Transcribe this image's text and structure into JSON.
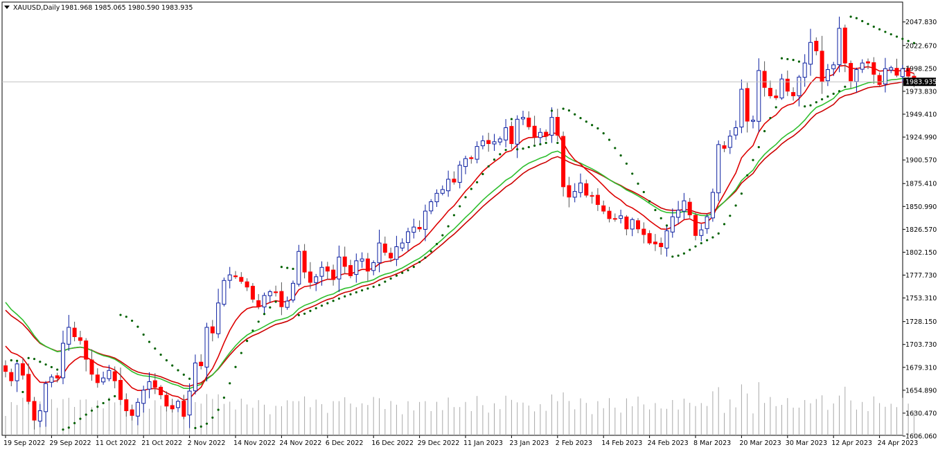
{
  "header": {
    "symbol": "XAUUSD,Daily",
    "ohlc": "1981.968 1985.065 1980.590 1983.935"
  },
  "colors": {
    "bull": "#0a1ea0",
    "bear": "#ff0000",
    "ma_fast": "#dd0000",
    "ma_mid": "#2fbf2f",
    "ma_slow": "#cc0000",
    "sar": "#006000",
    "volume": "#a8a8a8"
  },
  "chart_data": {
    "type": "candlestick",
    "title": "XAUUSD,Daily",
    "ylim": [
      1606.06,
      2055.0
    ],
    "y_ticks": [
      2047.83,
      2022.67,
      1998.25,
      1973.83,
      1949.41,
      1924.99,
      1900.57,
      1875.41,
      1850.99,
      1826.57,
      1802.15,
      1777.73,
      1753.31,
      1728.15,
      1703.73,
      1679.31,
      1654.89,
      1630.47,
      1606.06
    ],
    "y_tick_labels": [
      "2047.830",
      "2022.670",
      "1998.250",
      "1973.830",
      "1949.410",
      "1924.990",
      "1900.570",
      "1875.410",
      "1850.990",
      "1826.570",
      "1802.150",
      "1777.730",
      "1753.310",
      "1728.150",
      "1703.730",
      "1679.310",
      "1654.890",
      "1630.470",
      "1606.060"
    ],
    "current_price_label": "1983.935",
    "current_price": 1983.935,
    "x_labels": [
      "19 Sep 2022",
      "29 Sep 2022",
      "11 Oct 2022",
      "21 Oct 2022",
      "2 Nov 2022",
      "14 Nov 2022",
      "24 Nov 2022",
      "6 Dec 2022",
      "16 Dec 2022",
      "29 Dec 2022",
      "11 Jan 2023",
      "23 Jan 2023",
      "2 Feb 2023",
      "14 Feb 2023",
      "24 Feb 2023",
      "8 Mar 2023",
      "20 Mar 2023",
      "30 Mar 2023",
      "12 Apr 2023",
      "24 Apr 2023"
    ],
    "x_label_bar_index": [
      0,
      8,
      16,
      24,
      32,
      40,
      48,
      56,
      64,
      72,
      80,
      88,
      96,
      104,
      112,
      120,
      128,
      136,
      144,
      152
    ],
    "closes": [
      1675,
      1665,
      1683,
      1671,
      1643,
      1623,
      1633,
      1662,
      1669,
      1668,
      1705,
      1722,
      1712,
      1708,
      1688,
      1672,
      1663,
      1668,
      1676,
      1665,
      1645,
      1633,
      1628,
      1642,
      1655,
      1664,
      1658,
      1650,
      1638,
      1635,
      1643,
      1627,
      1654,
      1684,
      1681,
      1722,
      1716,
      1748,
      1772,
      1778,
      1776,
      1771,
      1765,
      1752,
      1744,
      1756,
      1760,
      1759,
      1744,
      1750,
      1769,
      1803,
      1781,
      1770,
      1776,
      1786,
      1782,
      1773,
      1797,
      1787,
      1777,
      1793,
      1795,
      1782,
      1791,
      1812,
      1802,
      1796,
      1808,
      1812,
      1824,
      1829,
      1827,
      1846,
      1856,
      1865,
      1869,
      1880,
      1877,
      1895,
      1902,
      1902,
      1915,
      1921,
      1918,
      1920,
      1923,
      1935,
      1918,
      1944,
      1946,
      1936,
      1925,
      1930,
      1926,
      1946,
      1927,
      1872,
      1861,
      1867,
      1876,
      1863,
      1862,
      1853,
      1846,
      1838,
      1838,
      1841,
      1827,
      1837,
      1827,
      1821,
      1812,
      1811,
      1808,
      1825,
      1840,
      1847,
      1857,
      1842,
      1820,
      1826,
      1840,
      1866,
      1917,
      1913,
      1926,
      1935,
      1976,
      1942,
      1943,
      1996,
      1978,
      1969,
      1967,
      1987,
      1974,
      1969,
      1989,
      2004,
      2026,
      2017,
      1984,
      1997,
      2002,
      2041,
      2004,
      1985,
      1997,
      2004,
      2004,
      1992,
      1981,
      1998,
      1999,
      1991,
      1998,
      1990,
      1984
    ],
    "moving_averages": [
      "red (fast)",
      "green",
      "red (slow)"
    ],
    "indicators": [
      "Parabolic SAR",
      "Volume"
    ]
  }
}
